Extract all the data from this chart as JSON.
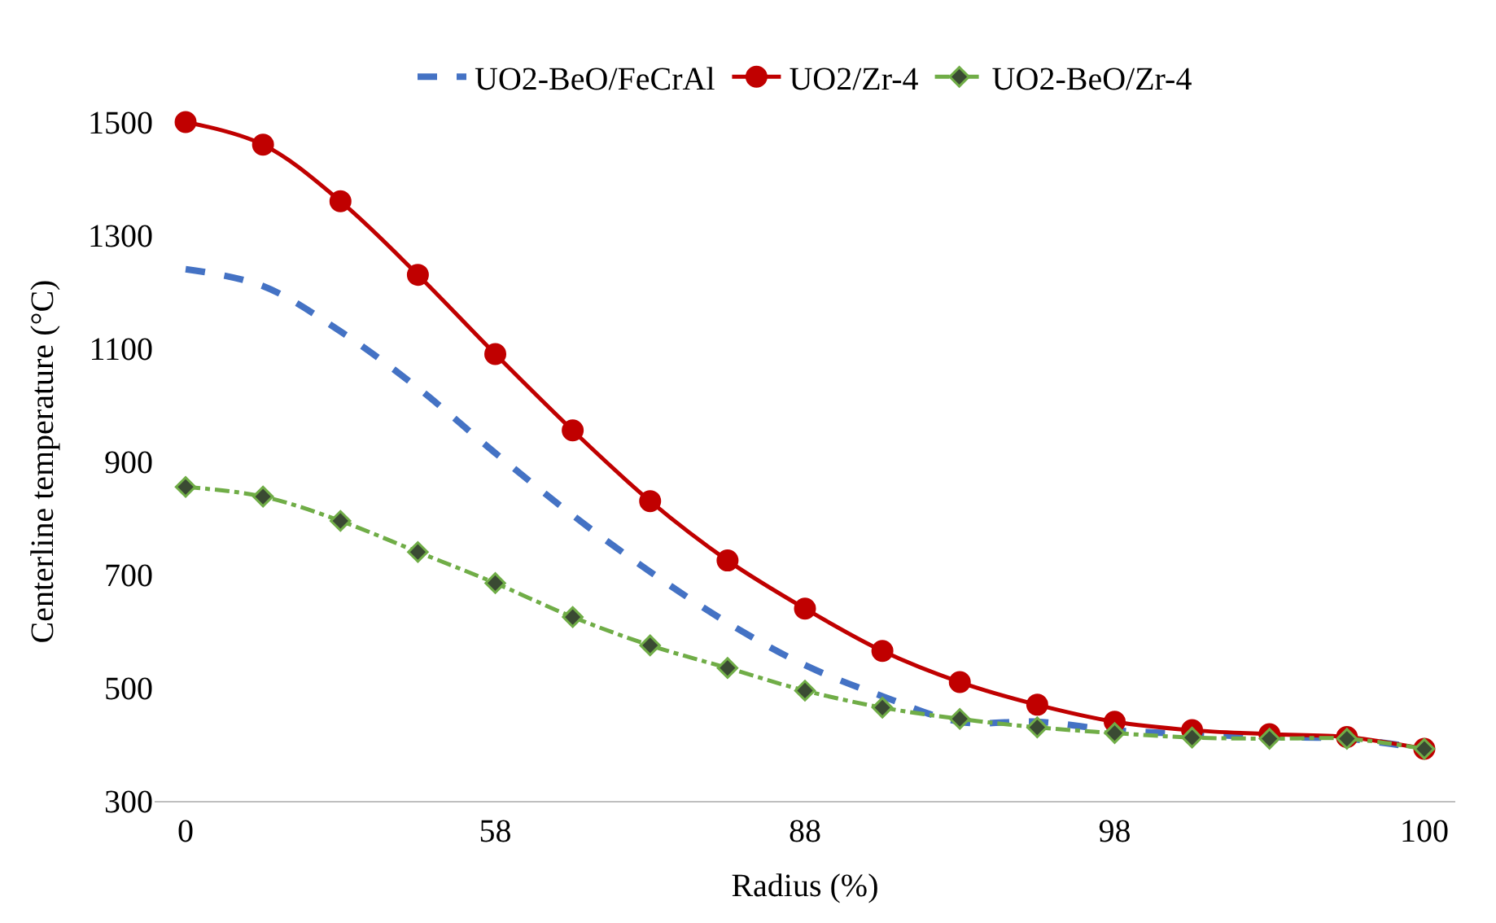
{
  "chart_data": {
    "type": "line",
    "xlabel": "Radius (%)",
    "ylabel": "Centerline temperature (°C)",
    "categories": [
      "0",
      null,
      null,
      null,
      "58",
      null,
      null,
      null,
      "88",
      null,
      null,
      null,
      "98",
      null,
      null,
      null,
      "100"
    ],
    "ylim": [
      300,
      1500
    ],
    "yticks": [
      300,
      500,
      700,
      900,
      1100,
      1300,
      1500
    ],
    "legend": "top",
    "series": [
      {
        "name": "UO2-BeO/FeCrAl",
        "color": "#4472c4",
        "line_style": "dashed",
        "marker": "none",
        "values": [
          1240,
          1210,
          1130,
          1030,
          915,
          805,
          705,
          615,
          540,
          485,
          440,
          440,
          425,
          418,
          413,
          410,
          392
        ]
      },
      {
        "name": "UO2/Zr-4",
        "color": "#c00000",
        "line_style": "solid",
        "marker": "circle",
        "values": [
          1500,
          1460,
          1360,
          1230,
          1090,
          955,
          830,
          725,
          640,
          565,
          510,
          470,
          440,
          425,
          418,
          413,
          392
        ]
      },
      {
        "name": "UO2-BeO/Zr-4",
        "color": "#70ad47",
        "line_style": "dashdot",
        "marker": "diamond",
        "values": [
          855,
          838,
          795,
          740,
          685,
          625,
          575,
          535,
          495,
          465,
          445,
          430,
          420,
          412,
          410,
          410,
          392
        ]
      }
    ]
  }
}
